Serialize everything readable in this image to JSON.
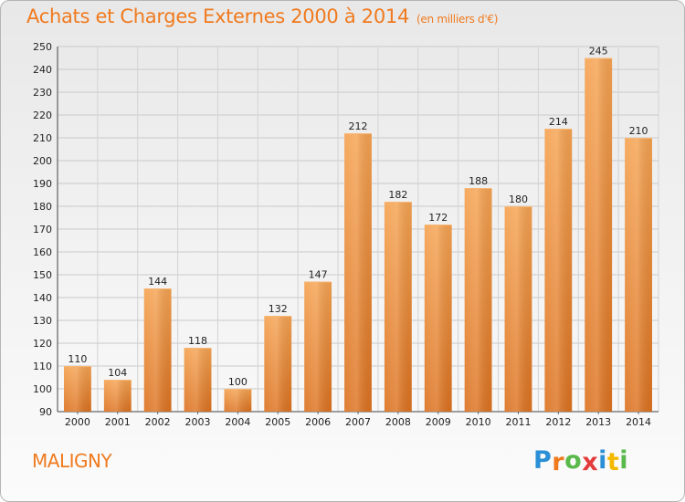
{
  "header": {
    "title": "Achats et Charges Externes 2000 à 2014",
    "subtitle": "(en milliers d'€)"
  },
  "footer": {
    "commune": "MALIGNY",
    "logo_text": "Proxiti",
    "logo_colors": [
      "#2a8fd6",
      "#f07a1e",
      "#59b94b",
      "#e43b3b",
      "#2a8fd6",
      "#f5b800",
      "#59b94b"
    ]
  },
  "chart_data": {
    "type": "bar",
    "title": "Achats et Charges Externes 2000 à 2014",
    "subtitle": "(en milliers d'€)",
    "xlabel": "",
    "ylabel": "",
    "categories": [
      "2000",
      "2001",
      "2002",
      "2003",
      "2004",
      "2005",
      "2006",
      "2007",
      "2008",
      "2009",
      "2010",
      "2011",
      "2012",
      "2013",
      "2014"
    ],
    "values": [
      110,
      104,
      144,
      118,
      100,
      132,
      147,
      212,
      182,
      172,
      188,
      180,
      214,
      245,
      210
    ],
    "ylim": [
      90,
      250
    ],
    "yticks": [
      90,
      100,
      110,
      120,
      130,
      140,
      150,
      160,
      170,
      180,
      190,
      200,
      210,
      220,
      230,
      240,
      250
    ],
    "grid": true,
    "bar_color_top": "#f5a352",
    "bar_color_bottom": "#dc7220",
    "data_labels": true
  }
}
